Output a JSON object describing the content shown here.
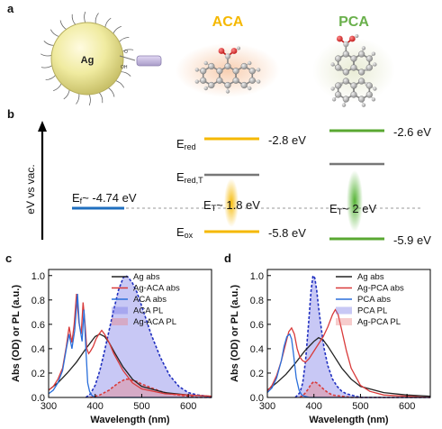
{
  "panel_a": {
    "label": "a",
    "particle_label": "Ag",
    "molecule_1": "ACA",
    "molecule_2": "PCA",
    "title_color_1": "#f5b800",
    "title_color_2": "#6ab04c"
  },
  "panel_b": {
    "label": "b",
    "y_axis_label": "eV vs vac.",
    "fermi_label": "E",
    "fermi_sub": "f",
    "fermi_value": "~ -4.74 eV",
    "ered_label": "E",
    "ered_sub": "red",
    "eredt_label": "E",
    "eredt_sub": "red,T",
    "eox_label": "E",
    "eox_sub": "ox",
    "aca_ered": "-2.8 eV",
    "aca_eox": "-5.8 eV",
    "aca_et_label": "E",
    "aca_et_sub": "T",
    "aca_et_value": "~ 1.8 eV",
    "pca_ered": "-2.6 eV",
    "pca_eox": "-5.9 eV",
    "pca_et_label": "E",
    "pca_et_sub": "T",
    "pca_et_value": "~ 2 eV",
    "colors": {
      "fermi": "#1f6fbf",
      "aca": "#f5b800",
      "pca": "#5aa832",
      "gray": "#777777"
    }
  },
  "chart_data": [
    {
      "type": "line",
      "panel": "c",
      "xlabel": "Wavelength (nm)",
      "ylabel": "Abs (OD) or PL (a.u.)",
      "xlim": [
        300,
        650
      ],
      "ylim": [
        0,
        1.05
      ],
      "xticks": [
        300,
        400,
        500,
        600
      ],
      "yticks": [
        "0.0",
        "0.2",
        "0.4",
        "0.6",
        "0.8",
        "1.0"
      ],
      "legend_position": "top-right",
      "series": [
        {
          "name": "Ag abs",
          "style": "line",
          "color": "#222222",
          "x": [
            300,
            320,
            340,
            360,
            380,
            400,
            410,
            420,
            430,
            440,
            460,
            480,
            500,
            550,
            600,
            650
          ],
          "y": [
            0.06,
            0.12,
            0.2,
            0.29,
            0.4,
            0.5,
            0.52,
            0.5,
            0.45,
            0.38,
            0.25,
            0.15,
            0.09,
            0.04,
            0.02,
            0.01
          ]
        },
        {
          "name": "Ag-ACA abs",
          "style": "line",
          "color": "#d93a3a",
          "x": [
            300,
            310,
            320,
            330,
            338,
            344,
            350,
            355,
            360,
            365,
            370,
            374,
            378,
            382,
            386,
            390,
            396,
            402,
            408,
            414,
            420,
            430,
            440,
            460,
            480,
            500,
            550,
            600,
            650
          ],
          "y": [
            0.06,
            0.09,
            0.15,
            0.24,
            0.42,
            0.58,
            0.45,
            0.6,
            0.85,
            0.62,
            0.52,
            0.78,
            0.62,
            0.4,
            0.36,
            0.38,
            0.42,
            0.48,
            0.52,
            0.55,
            0.52,
            0.45,
            0.36,
            0.22,
            0.12,
            0.07,
            0.03,
            0.02,
            0.01
          ]
        },
        {
          "name": "ACA abs",
          "style": "line",
          "color": "#2a6fdb",
          "x": [
            300,
            310,
            320,
            330,
            338,
            344,
            350,
            356,
            362,
            366,
            372,
            376,
            380,
            384,
            388,
            392,
            396,
            400,
            650
          ],
          "y": [
            0.03,
            0.06,
            0.12,
            0.22,
            0.4,
            0.52,
            0.4,
            0.55,
            0.85,
            0.6,
            0.46,
            0.72,
            0.4,
            0.12,
            0.05,
            0.02,
            0.01,
            0.0,
            0.0
          ]
        },
        {
          "name": "ACA PL",
          "style": "fill",
          "color": "#1f2fbf",
          "fill": "rgba(118,118,230,0.40)",
          "x": [
            380,
            390,
            400,
            410,
            420,
            430,
            440,
            450,
            460,
            465,
            470,
            480,
            490,
            500,
            520,
            540,
            560,
            580,
            600,
            620,
            640,
            650
          ],
          "y": [
            0.0,
            0.03,
            0.1,
            0.22,
            0.38,
            0.55,
            0.72,
            0.88,
            0.98,
            1.0,
            0.99,
            0.94,
            0.86,
            0.75,
            0.52,
            0.33,
            0.18,
            0.09,
            0.04,
            0.02,
            0.01,
            0.0
          ]
        },
        {
          "name": "Ag-ACA PL",
          "style": "fill",
          "color": "#d93a3a",
          "fill": "rgba(235,120,120,0.38)",
          "x": [
            390,
            400,
            410,
            420,
            430,
            440,
            450,
            460,
            465,
            470,
            480,
            490,
            500,
            520,
            540,
            560,
            580,
            600,
            620,
            650
          ],
          "y": [
            0.0,
            0.01,
            0.02,
            0.04,
            0.06,
            0.09,
            0.12,
            0.14,
            0.15,
            0.15,
            0.14,
            0.13,
            0.11,
            0.08,
            0.05,
            0.03,
            0.02,
            0.01,
            0.0,
            0.0
          ]
        }
      ]
    },
    {
      "type": "line",
      "panel": "d",
      "xlabel": "Wavelength (nm)",
      "ylabel": "Abs (OD) or PL (a.u.)",
      "xlim": [
        300,
        650
      ],
      "ylim": [
        0,
        1.05
      ],
      "xticks": [
        300,
        400,
        500,
        600
      ],
      "yticks": [
        "0.0",
        "0.2",
        "0.4",
        "0.6",
        "0.8",
        "1.0"
      ],
      "legend_position": "top-right",
      "series": [
        {
          "name": "Ag abs",
          "style": "line",
          "color": "#222222",
          "x": [
            300,
            320,
            340,
            360,
            380,
            400,
            410,
            420,
            430,
            440,
            460,
            480,
            500,
            550,
            600,
            650
          ],
          "y": [
            0.06,
            0.12,
            0.19,
            0.28,
            0.38,
            0.46,
            0.49,
            0.47,
            0.42,
            0.36,
            0.24,
            0.15,
            0.09,
            0.04,
            0.02,
            0.01
          ]
        },
        {
          "name": "Ag-PCA abs",
          "style": "line",
          "color": "#d93a3a",
          "x": [
            300,
            310,
            320,
            330,
            340,
            346,
            352,
            358,
            364,
            370,
            376,
            382,
            390,
            400,
            410,
            420,
            430,
            440,
            446,
            452,
            460,
            470,
            480,
            500,
            520,
            550,
            600,
            650
          ],
          "y": [
            0.05,
            0.1,
            0.18,
            0.3,
            0.45,
            0.54,
            0.57,
            0.52,
            0.4,
            0.33,
            0.3,
            0.29,
            0.32,
            0.38,
            0.44,
            0.5,
            0.58,
            0.68,
            0.72,
            0.68,
            0.55,
            0.38,
            0.24,
            0.1,
            0.05,
            0.02,
            0.01,
            0.0
          ]
        },
        {
          "name": "PCA abs",
          "style": "line",
          "color": "#2a6fdb",
          "x": [
            300,
            310,
            320,
            330,
            336,
            342,
            348,
            352,
            356,
            362,
            368,
            374,
            380,
            390,
            650
          ],
          "y": [
            0.04,
            0.08,
            0.16,
            0.3,
            0.42,
            0.5,
            0.52,
            0.48,
            0.36,
            0.16,
            0.06,
            0.02,
            0.01,
            0.0,
            0.0
          ]
        },
        {
          "name": "PCA PL",
          "style": "fill",
          "color": "#1f2fbf",
          "fill": "rgba(118,118,230,0.40)",
          "x": [
            360,
            370,
            376,
            382,
            388,
            394,
            398,
            402,
            406,
            410,
            416,
            422,
            430,
            440,
            450,
            460,
            470,
            480,
            500,
            650
          ],
          "y": [
            0.0,
            0.04,
            0.12,
            0.3,
            0.58,
            0.88,
            1.0,
            0.98,
            0.88,
            0.74,
            0.56,
            0.4,
            0.26,
            0.15,
            0.09,
            0.05,
            0.03,
            0.02,
            0.0,
            0.0
          ]
        },
        {
          "name": "Ag-PCA PL",
          "style": "fill",
          "color": "#d93a3a",
          "fill": "rgba(235,120,120,0.38)",
          "x": [
            370,
            380,
            388,
            394,
            400,
            406,
            412,
            420,
            430,
            440,
            460,
            480,
            650
          ],
          "y": [
            0.0,
            0.03,
            0.07,
            0.11,
            0.13,
            0.12,
            0.1,
            0.07,
            0.04,
            0.02,
            0.01,
            0.0,
            0.0
          ]
        }
      ]
    }
  ]
}
